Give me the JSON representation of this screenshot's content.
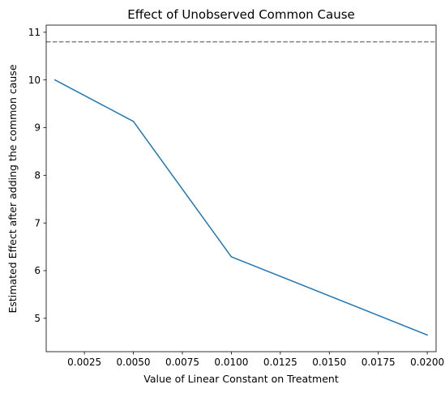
{
  "chart_data": {
    "type": "line",
    "title": "Effect of Unobserved Common Cause",
    "xlabel": "Value of Linear Constant on Treatment",
    "ylabel": "Estimated Effect after adding the common cause",
    "xlim": [
      0.00055,
      0.02045
    ],
    "ylim": [
      4.3,
      11.15
    ],
    "xticks": [
      0.0025,
      0.005,
      0.0075,
      0.01,
      0.0125,
      0.015,
      0.0175,
      0.02
    ],
    "xtick_labels": [
      "0.0025",
      "0.0050",
      "0.0075",
      "0.0100",
      "0.0125",
      "0.0150",
      "0.0175",
      "0.0200"
    ],
    "yticks": [
      5,
      6,
      7,
      8,
      9,
      10,
      11
    ],
    "ytick_labels": [
      "5",
      "6",
      "7",
      "8",
      "9",
      "10",
      "11"
    ],
    "grid": false,
    "series": [
      {
        "color": "#1f77b4",
        "x": [
          0.001,
          0.005,
          0.01,
          0.02
        ],
        "y": [
          10.0,
          9.13,
          6.29,
          4.65
        ]
      }
    ],
    "reference_line": {
      "orientation": "horizontal",
      "y": 10.8,
      "style": "dashed",
      "color": "#808080"
    }
  }
}
